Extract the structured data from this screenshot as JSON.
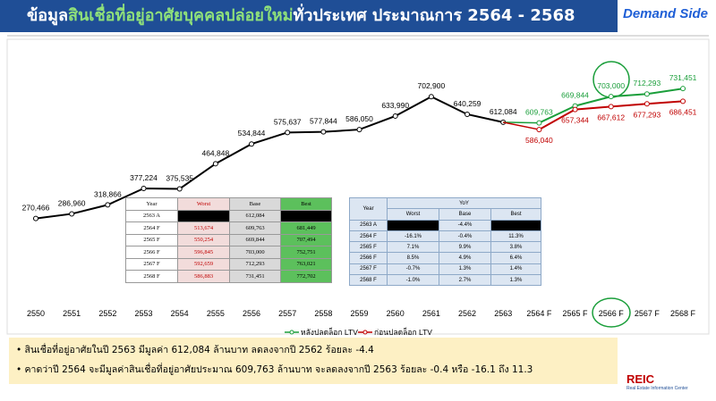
{
  "header": {
    "title_parts": [
      "ข้อมูล",
      "สินเชื่อที่อยู่อาศัยบุคคลปล่อยใหม่",
      "ทั่วประเทศ ประมาณการ 2564 - 2568"
    ],
    "side": "Demand Side"
  },
  "chart_data": {
    "type": "line",
    "categories": [
      "2550",
      "2551",
      "2552",
      "2553",
      "2554",
      "2555",
      "2556",
      "2557",
      "2558",
      "2559",
      "2560",
      "2561",
      "2562",
      "2563",
      "2564 F",
      "2565 F",
      "2566 F",
      "2567 F",
      "2568 F"
    ],
    "ylim": [
      0,
      900000
    ],
    "legend": "bottom",
    "series": [
      {
        "color": "#000000",
        "values": [
          270466,
          286960,
          318866,
          377224,
          375535,
          464848,
          534844,
          575637,
          577844,
          586050,
          633990,
          702900,
          640259,
          612084,
          null,
          null,
          null,
          null,
          null
        ],
        "value_labels": [
          "270,466",
          "286,960",
          "318,866",
          "377,224",
          "375,535",
          "464,848",
          "534,844",
          "575,637",
          "577,844",
          "586,050",
          "633,990",
          "702,900",
          "640,259",
          "612,084",
          null,
          null,
          null,
          null,
          null
        ]
      },
      {
        "name": "หลังปลดล็อก LTV",
        "color": "#1a9e3a",
        "values": [
          null,
          null,
          null,
          null,
          null,
          null,
          null,
          null,
          null,
          null,
          null,
          null,
          null,
          null,
          609763,
          669844,
          703000,
          712293,
          731451
        ],
        "value_labels": [
          null,
          null,
          null,
          null,
          null,
          null,
          null,
          null,
          null,
          null,
          null,
          null,
          null,
          null,
          "609,763",
          "669,844",
          "703,000",
          "712,293",
          "731,451"
        ]
      },
      {
        "name": "ก่อนปลดล็อก LTV",
        "color": "#c00000",
        "values": [
          null,
          null,
          null,
          null,
          null,
          null,
          null,
          null,
          null,
          null,
          null,
          null,
          null,
          null,
          586040,
          657344,
          667612,
          677293,
          686451
        ],
        "value_labels": [
          null,
          null,
          null,
          null,
          null,
          null,
          null,
          null,
          null,
          null,
          null,
          null,
          null,
          null,
          "586,040",
          "657,344",
          "667,612",
          "677,293",
          "686,451"
        ]
      }
    ]
  },
  "tables": [
    {
      "header": [
        "Year",
        "Worst",
        "Base",
        "Best"
      ],
      "rows": [
        [
          "2563 A",
          "",
          "612,084",
          ""
        ],
        [
          "2564 F",
          "513,674",
          "609,763",
          "681,449"
        ],
        [
          "2565 F",
          "550,254",
          "669,844",
          "707,494"
        ],
        [
          "2566 F",
          "596,845",
          "703,000",
          "752,751"
        ],
        [
          "2567 F",
          "592,659",
          "712,293",
          "763,021"
        ],
        [
          "2568 F",
          "586,883",
          "731,451",
          "772,702"
        ]
      ]
    },
    {
      "header": [
        "Year",
        "YoY",
        "Worst",
        "Base",
        "Best"
      ],
      "rows": [
        [
          "2563 A",
          "",
          "-4.4%",
          ""
        ],
        [
          "2564 F",
          "-16.1%",
          "-0.4%",
          "11.3%"
        ],
        [
          "2565 F",
          "7.1%",
          "9.9%",
          "3.8%"
        ],
        [
          "2566 F",
          "8.5%",
          "4.9%",
          "6.4%"
        ],
        [
          "2567 F",
          "-0.7%",
          "1.3%",
          "1.4%"
        ],
        [
          "2568 F",
          "-1.0%",
          "2.7%",
          "1.3%"
        ]
      ]
    }
  ],
  "notes": [
    "สินเชื่อที่อยู่อาศัยในปี 2563 มีมูลค่า 612,084 ล้านบาท ลดลงจากปี 2562 ร้อยละ -4.4",
    "คาดว่าปี 2564 จะมีมูลค่าสินเชื่อที่อยู่อาศัยประมาณ 609,763 ล้านบาท จะลดลงจากปี 2563 ร้อยละ -0.4 หรือ -16.1 ถึง 11.3"
  ],
  "logo": {
    "mark": "REIC",
    "text": "Real Estate Information Center"
  }
}
